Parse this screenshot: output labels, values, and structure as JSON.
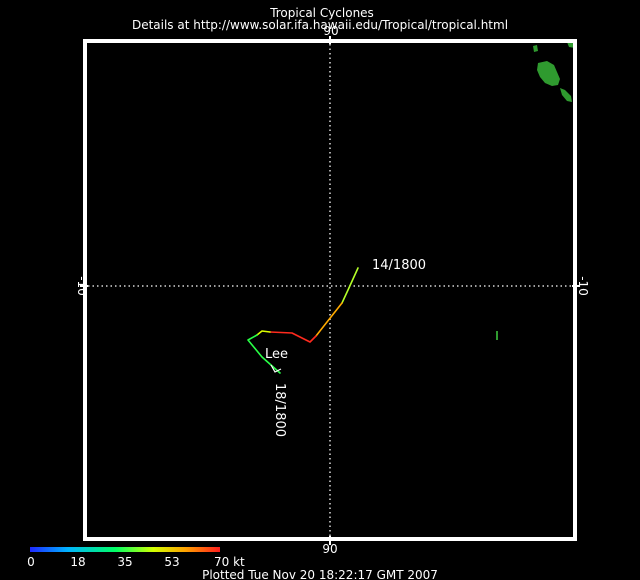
{
  "header": {
    "title": "Tropical Cyclones",
    "details": "Details at http://www.solar.ifa.hawaii.edu/Tropical/tropical.html"
  },
  "footer": {
    "plotted": "Plotted Tue Nov 20 18:22:17 GMT 2007"
  },
  "map": {
    "background_color": "#000000",
    "frame_color": "#ffffff",
    "land_color": "#2f9a2f",
    "grid_style": "dotted",
    "lon_label_top": "90",
    "lon_label_bottom": "90",
    "lat_label_left": "-10",
    "lat_label_right": "-10"
  },
  "storm": {
    "name": "Lee",
    "start_label": "14/1800",
    "end_label": "18/1800"
  },
  "legend": {
    "ticks": [
      "0",
      "18",
      "35",
      "53",
      "70 kt"
    ],
    "range_kt": [
      0,
      70
    ],
    "colors": [
      "#0000ff",
      "#00c8ff",
      "#00ff80",
      "#ffff00",
      "#ff8000",
      "#ff0000"
    ]
  }
}
